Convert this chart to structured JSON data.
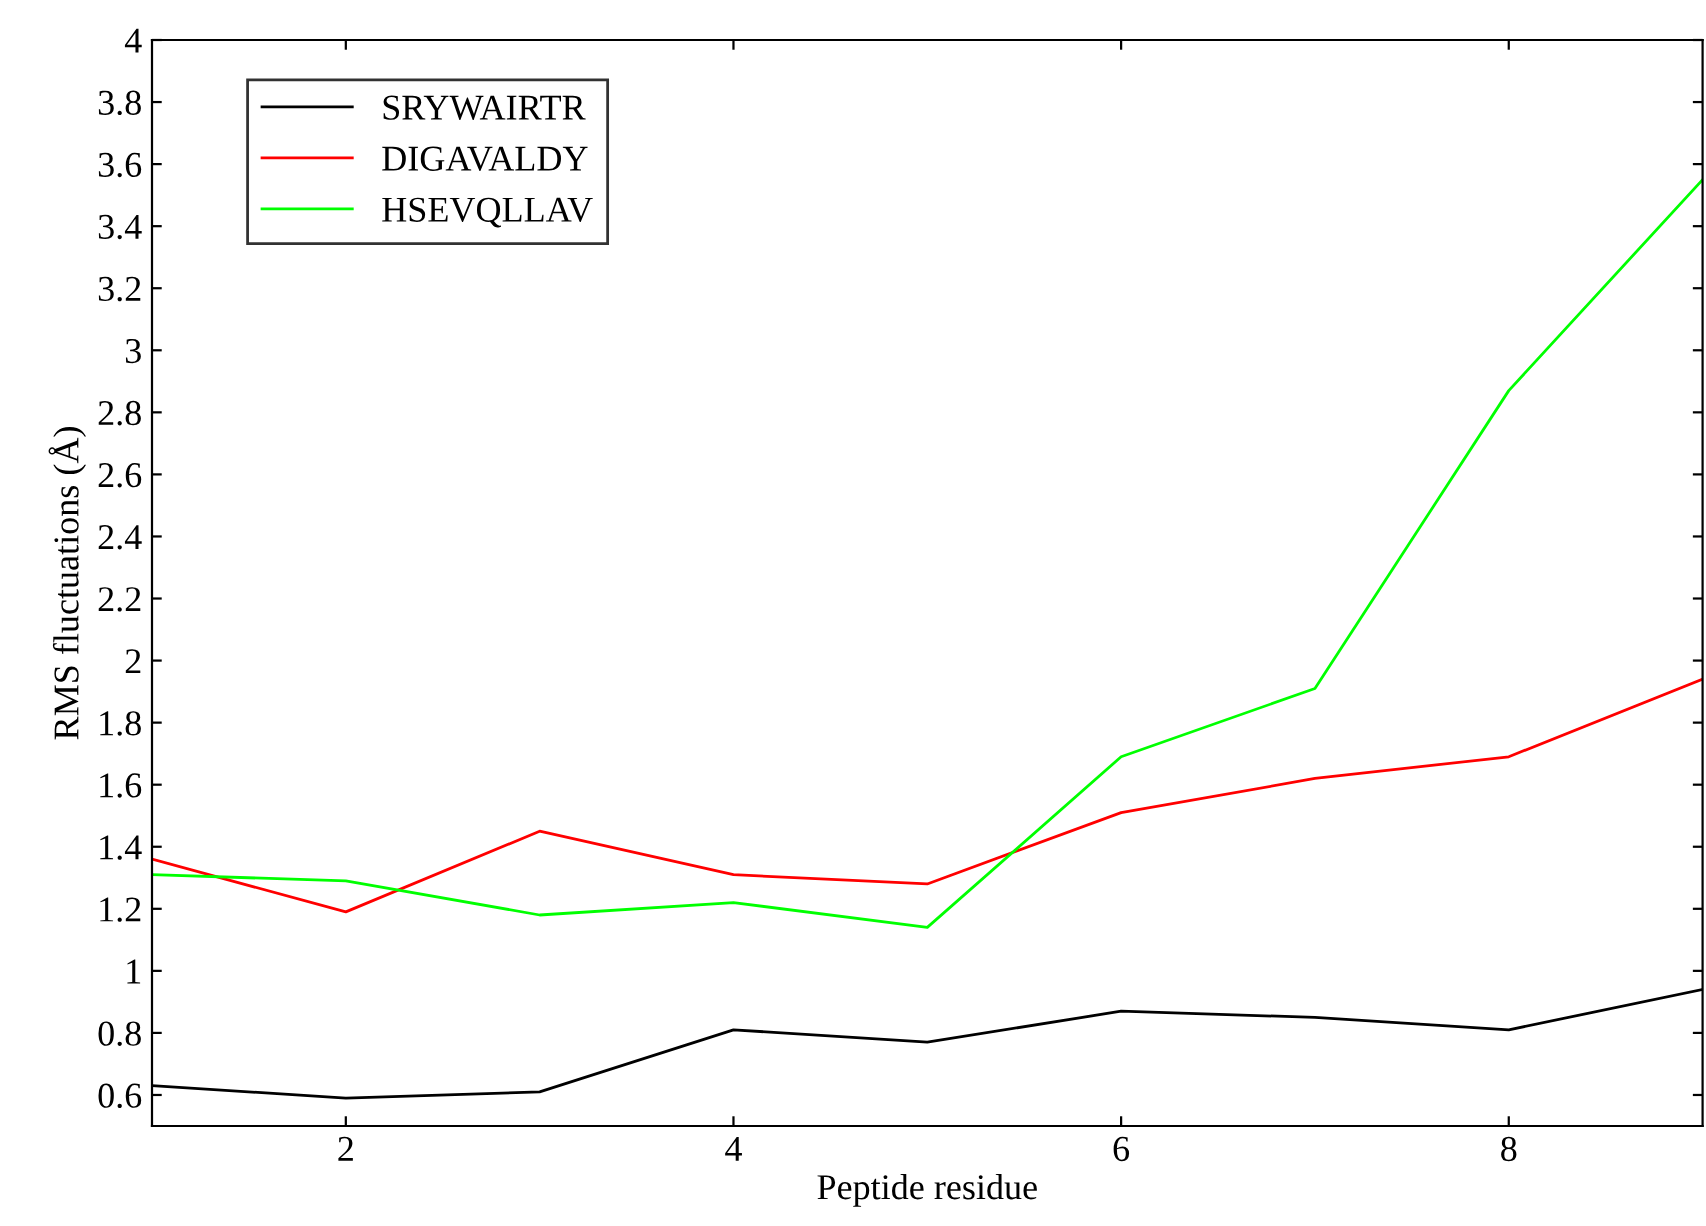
{
  "chart_data": {
    "type": "line",
    "xlabel": "Peptide residue",
    "ylabel": "RMS fluctuations (Å)",
    "x": [
      1,
      2,
      3,
      4,
      5,
      6,
      7,
      8,
      9
    ],
    "series": [
      {
        "name": "SRYWAIRTR",
        "color": "#000000",
        "values": [
          0.63,
          0.59,
          0.61,
          0.81,
          0.77,
          0.87,
          0.85,
          0.81,
          0.94
        ]
      },
      {
        "name": "DIGAVALDY",
        "color": "#ff0000",
        "values": [
          1.36,
          1.19,
          1.45,
          1.31,
          1.28,
          1.51,
          1.62,
          1.69,
          1.94
        ]
      },
      {
        "name": "HSEVQLLAV",
        "color": "#00ff00",
        "values": [
          1.31,
          1.29,
          1.18,
          1.22,
          1.14,
          1.69,
          1.91,
          2.87,
          3.55
        ]
      }
    ],
    "xlim": [
      1,
      9
    ],
    "xticks": [
      2,
      4,
      6,
      8
    ],
    "ylim": [
      0.5,
      4
    ],
    "yticks": [
      0.6,
      0.8,
      1,
      1.2,
      1.4,
      1.6,
      1.8,
      2,
      2.2,
      2.4,
      2.6,
      2.8,
      3,
      3.2,
      3.4,
      3.6,
      3.8,
      4
    ],
    "grid": false,
    "legend": "top left",
    "marker": "none",
    "line_style": "solid"
  }
}
